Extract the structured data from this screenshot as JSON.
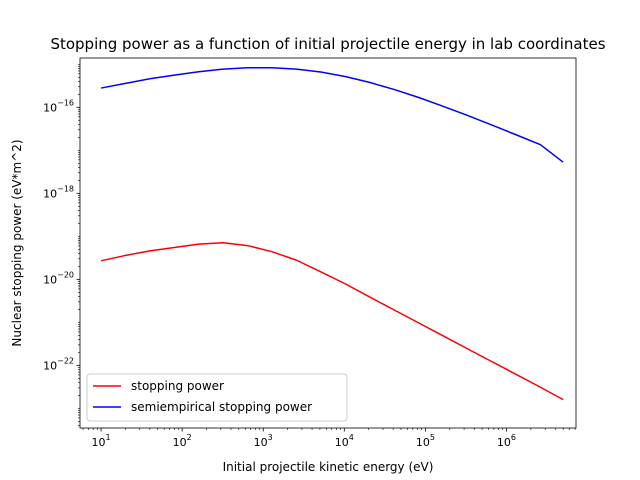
{
  "chart_data": {
    "type": "line",
    "title": "Stopping power as a function of initial projectile energy in lab coordinates",
    "xlabel": "Initial projectile kinetic energy (eV)",
    "ylabel": "Nuclear stopping power (eV*m^2)",
    "xscale": "log",
    "yscale": "log",
    "xlim": [
      5.5,
      7200000.0
    ],
    "ylim": [
      3.5e-24,
      1.4e-15
    ],
    "x_ticks": [
      {
        "base": "10",
        "exp": "1",
        "value": 10
      },
      {
        "base": "10",
        "exp": "2",
        "value": 100
      },
      {
        "base": "10",
        "exp": "3",
        "value": 1000
      },
      {
        "base": "10",
        "exp": "4",
        "value": 10000
      },
      {
        "base": "10",
        "exp": "5",
        "value": 100000
      },
      {
        "base": "10",
        "exp": "6",
        "value": 1000000
      }
    ],
    "y_ticks": [
      {
        "base": "10",
        "exp": "−16",
        "value": 1e-16
      },
      {
        "base": "10",
        "exp": "−18",
        "value": 1e-18
      },
      {
        "base": "10",
        "exp": "−20",
        "value": 1e-20
      },
      {
        "base": "10",
        "exp": "−22",
        "value": 1e-22
      }
    ],
    "grid": false,
    "legend_position": "lower-left",
    "series": [
      {
        "name": "stopping power",
        "color": "#ff0000",
        "x": [
          10,
          20,
          40,
          80,
          160,
          320,
          640,
          1280,
          2560,
          5120,
          10240,
          20480,
          40960,
          81920,
          163840,
          327680,
          655360,
          1310720,
          2621440,
          5000000
        ],
        "y": [
          2.7e-20,
          3.6e-20,
          4.6e-20,
          5.5e-20,
          6.6e-20,
          7.1e-20,
          6.1e-20,
          4.4e-20,
          2.8e-20,
          1.5e-20,
          7.9e-21,
          3.9e-21,
          1.95e-21,
          9.8e-22,
          4.9e-22,
          2.45e-22,
          1.23e-22,
          6.2e-23,
          3.1e-23,
          1.6e-23
        ]
      },
      {
        "name": "semiempirical stopping power",
        "color": "#0000ff",
        "x": [
          10,
          20,
          40,
          80,
          160,
          320,
          640,
          1280,
          2560,
          5120,
          10240,
          20480,
          40960,
          81920,
          163840,
          327680,
          655360,
          1310720,
          2621440,
          5000000
        ],
        "y": [
          2.8e-16,
          3.6e-16,
          4.6e-16,
          5.6e-16,
          6.7e-16,
          7.7e-16,
          8.3e-16,
          8.3e-16,
          7.7e-16,
          6.6e-16,
          5.2e-16,
          3.8e-16,
          2.6e-16,
          1.7e-16,
          1.06e-16,
          6.5e-17,
          3.9e-17,
          2.3e-17,
          1.35e-17,
          5.3e-18
        ]
      }
    ]
  }
}
